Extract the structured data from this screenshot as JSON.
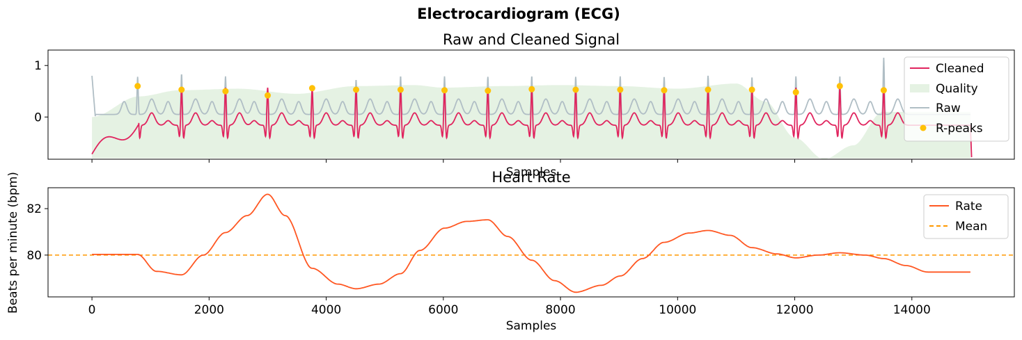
{
  "figure": {
    "title": "Electrocardiogram (ECG)"
  },
  "chart_data": [
    {
      "type": "line",
      "title": "Raw and Cleaned Signal",
      "xlabel": "Samples",
      "ylabel": "",
      "xlim": [
        -750,
        15750
      ],
      "ylim": [
        -0.82,
        1.3
      ],
      "xticks": [
        0,
        2000,
        4000,
        6000,
        8000,
        10000,
        12000,
        14000
      ],
      "xticklabels_visible": false,
      "yticks": [
        0,
        1
      ],
      "yticklabels": [
        "0",
        "1"
      ],
      "grid": false,
      "legend": {
        "placement": "upper right",
        "entries": [
          "Cleaned",
          "Quality",
          "Raw",
          "R-peaks"
        ]
      },
      "colors": {
        "cleaned": "#E0245E",
        "quality": "#E5F2E3",
        "raw": "#B0BEC5",
        "rpeaks": "#FFC107"
      },
      "r_peaks": {
        "x": [
          780,
          1530,
          2280,
          3000,
          3760,
          4510,
          5270,
          6020,
          6760,
          7510,
          8260,
          9020,
          9770,
          10520,
          11270,
          12020,
          12770,
          13520
        ],
        "y": [
          0.6,
          0.53,
          0.5,
          0.42,
          0.56,
          0.53,
          0.53,
          0.52,
          0.51,
          0.54,
          0.53,
          0.53,
          0.52,
          0.53,
          0.53,
          0.48,
          0.6,
          0.52
        ]
      },
      "raw_peak_heights": [
        0.83,
        0.88,
        0.84,
        0.48,
        0.58,
        0.77,
        0.84,
        0.84,
        0.83,
        0.84,
        0.83,
        0.84,
        0.83,
        0.85,
        0.82,
        0.84,
        0.84,
        1.2
      ],
      "quality": {
        "x": [
          0,
          800,
          1500,
          2500,
          3500,
          4500,
          5500,
          6000,
          7000,
          8000,
          9000,
          10000,
          11000,
          11500,
          12000,
          12500,
          13000,
          13500,
          14000,
          15000
        ],
        "y": [
          0.0,
          0.4,
          0.52,
          0.55,
          0.45,
          0.6,
          0.62,
          0.57,
          0.6,
          0.62,
          0.6,
          0.55,
          0.65,
          0.3,
          -0.4,
          -0.82,
          -0.55,
          0.1,
          0.1,
          0.1
        ]
      }
    },
    {
      "type": "line",
      "title": "Heart Rate",
      "xlabel": "Samples",
      "ylabel": "Beats per minute (bpm)",
      "xlim": [
        -750,
        15750
      ],
      "ylim": [
        78.2,
        82.9
      ],
      "xticks": [
        0,
        2000,
        4000,
        6000,
        8000,
        10000,
        12000,
        14000
      ],
      "xticklabels": [
        "0",
        "2000",
        "4000",
        "6000",
        "8000",
        "10000",
        "12000",
        "14000"
      ],
      "yticks": [
        80,
        82
      ],
      "yticklabels": [
        "80",
        "82"
      ],
      "grid": false,
      "legend": {
        "placement": "upper right",
        "entries": [
          "Rate",
          "Mean"
        ]
      },
      "colors": {
        "rate": "#FF5722",
        "mean": "#FF9800"
      },
      "mean": 80.0,
      "series": [
        {
          "name": "Rate",
          "x": [
            0,
            500,
            780,
            1100,
            1530,
            1900,
            2280,
            2650,
            3000,
            3300,
            3760,
            4200,
            4510,
            4900,
            5270,
            5600,
            6020,
            6400,
            6760,
            7100,
            7510,
            7900,
            8260,
            8700,
            9020,
            9400,
            9770,
            10200,
            10520,
            10900,
            11270,
            11700,
            12020,
            12400,
            12770,
            13200,
            13520,
            13900,
            14270,
            15000
          ],
          "y": [
            80.03,
            80.03,
            80.03,
            79.3,
            79.15,
            80.0,
            80.97,
            81.7,
            82.62,
            81.7,
            79.43,
            78.75,
            78.55,
            78.75,
            79.2,
            80.2,
            81.16,
            81.45,
            81.52,
            80.8,
            79.78,
            78.9,
            78.4,
            78.7,
            79.1,
            79.85,
            80.55,
            80.95,
            81.06,
            80.85,
            80.32,
            80.05,
            79.88,
            80.0,
            80.1,
            80.0,
            79.85,
            79.55,
            79.27,
            79.27
          ]
        }
      ]
    }
  ]
}
